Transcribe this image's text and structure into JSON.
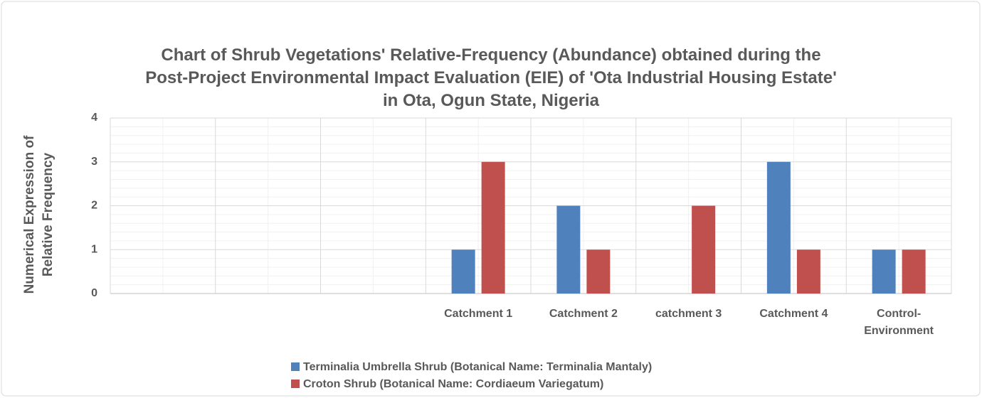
{
  "chart_data": {
    "type": "bar",
    "title": "Chart of Shrub Vegetations' Relative-Frequency (Abundance) obtained during the Post-Project Environmental Impact Evaluation (EIE) of 'Ota Industrial Housing Estate' in Ota, Ogun State, Nigeria",
    "y_label": "Numerical Expression of Relative Frequency",
    "categories": [
      null,
      null,
      null,
      "Catchment 1",
      "Catchment 2",
      "catchment 3",
      "Catchment 4",
      "Control-Environment"
    ],
    "series": [
      {
        "name": "Terminalia Umbrella Shrub (Botanical Name: Terminalia Mantaly)",
        "color": "#4f81bd",
        "values": [
          null,
          null,
          null,
          1,
          2,
          0,
          3,
          1
        ]
      },
      {
        "name": "Croton Shrub (Botanical Name: Cordiaeum Variegatum)",
        "color": "#c0504d",
        "values": [
          null,
          null,
          null,
          3,
          1,
          2,
          1,
          1
        ]
      }
    ],
    "ylim": [
      0,
      4
    ],
    "yticks": [
      0,
      1,
      2,
      3,
      4
    ],
    "grid": true,
    "legend": "bottom"
  }
}
